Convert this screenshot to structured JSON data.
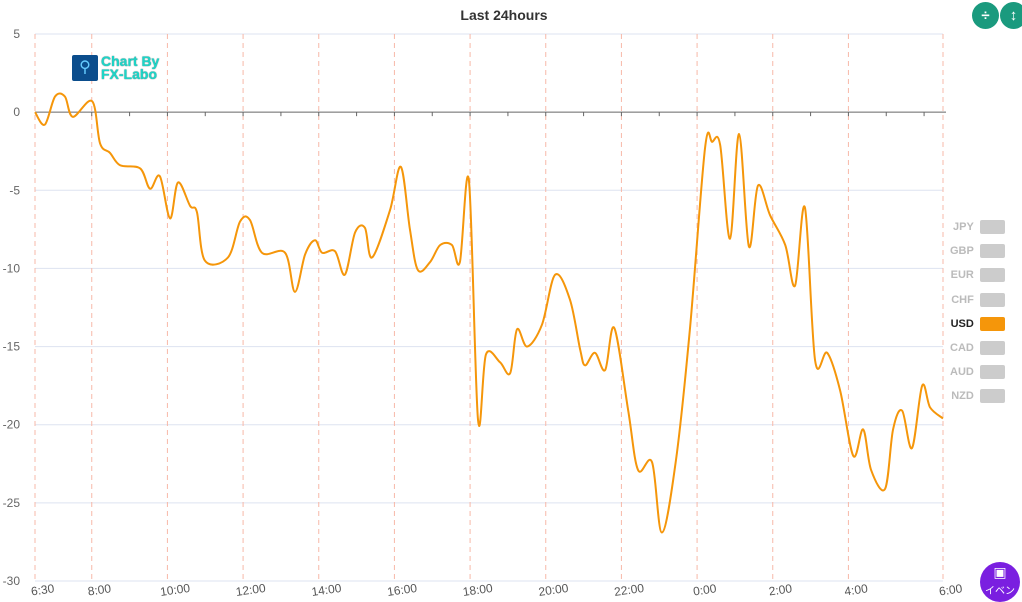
{
  "header": {
    "title": "Last 24hours",
    "compress_button": "÷",
    "expand_button": "↕"
  },
  "logo": {
    "line1": "Chart By",
    "line2": "FX-Labo"
  },
  "event_button": {
    "label": "イベン"
  },
  "legend": [
    {
      "label": "JPY",
      "active": false
    },
    {
      "label": "GBP",
      "active": false
    },
    {
      "label": "EUR",
      "active": false
    },
    {
      "label": "CHF",
      "active": false
    },
    {
      "label": "USD",
      "active": true
    },
    {
      "label": "CAD",
      "active": false
    },
    {
      "label": "AUD",
      "active": false
    },
    {
      "label": "NZD",
      "active": false
    }
  ],
  "colors": {
    "line": "#f5960a",
    "grid": "#dde3f0",
    "vgrid": "#f7b8a8"
  },
  "chart_data": {
    "type": "line",
    "title": "Last 24hours",
    "xlabel": "",
    "ylabel": "",
    "ylim": [
      -30,
      5
    ],
    "yticks": [
      5,
      0,
      -5,
      -10,
      -15,
      -20,
      -25,
      -30
    ],
    "xlim_hours_since_start": [
      0,
      24
    ],
    "xticks": [
      {
        "h": 0,
        "label": "6:30"
      },
      {
        "h": 1.5,
        "label": "8:00"
      },
      {
        "h": 3.5,
        "label": "10:00"
      },
      {
        "h": 5.5,
        "label": "12:00"
      },
      {
        "h": 7.5,
        "label": "14:00"
      },
      {
        "h": 9.5,
        "label": "16:00"
      },
      {
        "h": 11.5,
        "label": "18:00"
      },
      {
        "h": 13.5,
        "label": "20:00"
      },
      {
        "h": 15.5,
        "label": "22:00"
      },
      {
        "h": 17.5,
        "label": "0:00"
      },
      {
        "h": 19.5,
        "label": "2:00"
      },
      {
        "h": 21.5,
        "label": "4:00"
      },
      {
        "h": 24,
        "label": "6:00"
      }
    ],
    "series": [
      {
        "name": "USD",
        "x": [
          0,
          0.26,
          0.53,
          0.79,
          1.0,
          1.51,
          1.72,
          1.98,
          2.25,
          2.78,
          3.04,
          3.3,
          3.57,
          3.78,
          4.1,
          4.28,
          4.49,
          5.1,
          5.42,
          5.68,
          6.0,
          6.61,
          6.87,
          7.14,
          7.4,
          7.59,
          7.93,
          8.19,
          8.46,
          8.72,
          8.91,
          9.38,
          9.67,
          9.91,
          10.12,
          10.44,
          10.71,
          11.02,
          11.23,
          11.47,
          11.71,
          11.92,
          12.29,
          12.56,
          12.74,
          13.01,
          13.4,
          13.75,
          14.14,
          14.41,
          14.54,
          14.8,
          15.07,
          15.31,
          15.68,
          15.94,
          16.31,
          16.57,
          16.94,
          17.31,
          17.71,
          17.9,
          18.11,
          18.37,
          18.61,
          18.87,
          19.11,
          19.43,
          19.83,
          20.09,
          20.35,
          20.62,
          20.94,
          21.28,
          21.63,
          21.89,
          22.1,
          22.47,
          22.68,
          22.92,
          23.18,
          23.45,
          23.66,
          24.0
        ],
        "values": [
          0,
          -0.8,
          1,
          1,
          -0.3,
          0.7,
          -2,
          -2.6,
          -3.4,
          -3.6,
          -4.9,
          -4.1,
          -6.8,
          -4.5,
          -6,
          -6.4,
          -9.5,
          -9.3,
          -7,
          -6.9,
          -9,
          -9,
          -11.5,
          -9.1,
          -8.2,
          -9,
          -8.9,
          -10.4,
          -7.7,
          -7.4,
          -9.3,
          -6.3,
          -3.5,
          -7.5,
          -10.1,
          -9.6,
          -8.5,
          -8.5,
          -9.6,
          -4.4,
          -19.7,
          -15.5,
          -16,
          -16.7,
          -13.9,
          -15,
          -13.6,
          -10.4,
          -12,
          -15.2,
          -16.2,
          -15.4,
          -16.5,
          -13.8,
          -19.1,
          -22.9,
          -22.4,
          -26.9,
          -22.3,
          -13.9,
          -2.3,
          -1.9,
          -2.1,
          -8.1,
          -1.4,
          -8.6,
          -4.7,
          -6.6,
          -8.5,
          -11.1,
          -6.1,
          -15.9,
          -15.4,
          -17.8,
          -22,
          -20.3,
          -22.9,
          -24.1,
          -20.3,
          -19.1,
          -21.5,
          -17.5,
          -18.9,
          -19.6
        ]
      }
    ]
  }
}
